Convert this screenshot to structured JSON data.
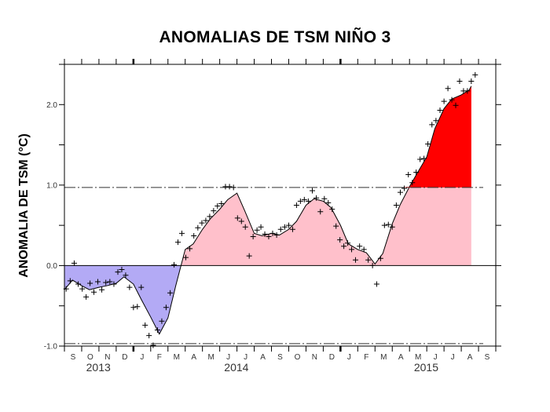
{
  "chart_data": {
    "type": "area",
    "title": "ANOMALIAS  DE TSM NIÑO 3",
    "ylabel": "ANOMALIA DE TSM (°C)",
    "xlabel": "",
    "xlim": [
      "2013-09-01",
      "2015-10-01"
    ],
    "ylim": [
      -1.0,
      2.5
    ],
    "yticks": [
      -1.0,
      -0.5,
      0.0,
      0.5,
      1.0,
      1.5,
      2.0,
      2.5
    ],
    "ytick_labels": [
      "-1.0",
      "0.0",
      "1.0",
      "2.0"
    ],
    "ytick_label_values": [
      -1.0,
      0.0,
      1.0,
      2.0
    ],
    "month_labels": [
      "S",
      "O",
      "N",
      "D",
      "J",
      "F",
      "M",
      "A",
      "M",
      "J",
      "J",
      "A",
      "S",
      "O",
      "N",
      "D",
      "J",
      "F",
      "M",
      "A",
      "M",
      "J",
      "J",
      "A",
      "S"
    ],
    "year_labels": [
      {
        "label": "2013",
        "month": "2013-10-31"
      },
      {
        "label": "2014",
        "month": "2014-06-30"
      },
      {
        "label": "2015",
        "month": "2015-05-31"
      }
    ],
    "thresholds": [
      0.97,
      -0.97
    ],
    "colors": {
      "negative": "#b3aaf5",
      "positive": "#ffc0cb",
      "above_threshold": "#ff0000",
      "line": "#000000"
    },
    "grid": false,
    "smoothed_curve": [
      [
        "2013-09-01",
        -0.3
      ],
      [
        "2013-09-15",
        -0.18
      ],
      [
        "2013-10-01",
        -0.25
      ],
      [
        "2013-10-15",
        -0.3
      ],
      [
        "2013-11-01",
        -0.27
      ],
      [
        "2013-11-15",
        -0.25
      ],
      [
        "2013-12-01",
        -0.22
      ],
      [
        "2013-12-15",
        -0.14
      ],
      [
        "2014-01-01",
        -0.23
      ],
      [
        "2014-01-15",
        -0.42
      ],
      [
        "2014-02-01",
        -0.64
      ],
      [
        "2014-02-15",
        -0.85
      ],
      [
        "2014-03-01",
        -0.65
      ],
      [
        "2014-03-15",
        -0.25
      ],
      [
        "2014-04-01",
        0.2
      ],
      [
        "2014-04-15",
        0.27
      ],
      [
        "2014-05-01",
        0.45
      ],
      [
        "2014-05-15",
        0.58
      ],
      [
        "2014-06-01",
        0.7
      ],
      [
        "2014-06-15",
        0.82
      ],
      [
        "2014-07-01",
        0.9
      ],
      [
        "2014-07-15",
        0.68
      ],
      [
        "2014-08-01",
        0.4
      ],
      [
        "2014-08-15",
        0.37
      ],
      [
        "2014-09-01",
        0.4
      ],
      [
        "2014-09-15",
        0.38
      ],
      [
        "2014-10-01",
        0.45
      ],
      [
        "2014-10-15",
        0.55
      ],
      [
        "2014-11-01",
        0.75
      ],
      [
        "2014-11-15",
        0.83
      ],
      [
        "2014-12-01",
        0.8
      ],
      [
        "2014-12-15",
        0.72
      ],
      [
        "2015-01-01",
        0.5
      ],
      [
        "2015-01-15",
        0.27
      ],
      [
        "2015-02-01",
        0.2
      ],
      [
        "2015-02-15",
        0.16
      ],
      [
        "2015-03-01",
        0.02
      ],
      [
        "2015-03-15",
        0.15
      ],
      [
        "2015-04-01",
        0.52
      ],
      [
        "2015-04-15",
        0.76
      ],
      [
        "2015-05-01",
        0.98
      ],
      [
        "2015-05-15",
        1.15
      ],
      [
        "2015-06-01",
        1.35
      ],
      [
        "2015-06-15",
        1.7
      ],
      [
        "2015-07-01",
        1.95
      ],
      [
        "2015-07-15",
        2.07
      ],
      [
        "2015-08-01",
        2.12
      ],
      [
        "2015-08-15",
        2.18
      ],
      [
        "2015-08-19",
        2.23
      ]
    ],
    "weekly_points": [
      [
        "2013-09-04",
        -0.29
      ],
      [
        "2013-09-11",
        -0.19
      ],
      [
        "2013-09-18",
        0.03
      ],
      [
        "2013-09-25",
        -0.23
      ],
      [
        "2013-10-02",
        -0.29
      ],
      [
        "2013-10-09",
        -0.39
      ],
      [
        "2013-10-16",
        -0.22
      ],
      [
        "2013-10-23",
        -0.33
      ],
      [
        "2013-10-30",
        -0.2
      ],
      [
        "2013-11-06",
        -0.3
      ],
      [
        "2013-11-13",
        -0.21
      ],
      [
        "2013-11-20",
        -0.2
      ],
      [
        "2013-11-27",
        -0.23
      ],
      [
        "2013-12-04",
        -0.08
      ],
      [
        "2013-12-11",
        -0.05
      ],
      [
        "2013-12-18",
        -0.12
      ],
      [
        "2013-12-25",
        -0.27
      ],
      [
        "2014-01-01",
        -0.52
      ],
      [
        "2014-01-08",
        -0.51
      ],
      [
        "2014-01-15",
        -0.27
      ],
      [
        "2014-01-22",
        -0.74
      ],
      [
        "2014-01-29",
        -0.87
      ],
      [
        "2014-02-05",
        -0.99
      ],
      [
        "2014-02-12",
        -0.8
      ],
      [
        "2014-02-19",
        -0.69
      ],
      [
        "2014-02-26",
        -0.52
      ],
      [
        "2014-03-05",
        -0.34
      ],
      [
        "2014-03-12",
        0.01
      ],
      [
        "2014-03-19",
        0.29
      ],
      [
        "2014-03-26",
        0.4
      ],
      [
        "2014-04-02",
        0.1
      ],
      [
        "2014-04-09",
        0.21
      ],
      [
        "2014-04-16",
        0.37
      ],
      [
        "2014-04-23",
        0.47
      ],
      [
        "2014-04-30",
        0.53
      ],
      [
        "2014-05-07",
        0.56
      ],
      [
        "2014-05-14",
        0.61
      ],
      [
        "2014-05-21",
        0.68
      ],
      [
        "2014-05-28",
        0.74
      ],
      [
        "2014-06-04",
        0.77
      ],
      [
        "2014-06-11",
        0.98
      ],
      [
        "2014-06-18",
        0.98
      ],
      [
        "2014-06-25",
        0.97
      ],
      [
        "2014-07-02",
        0.59
      ],
      [
        "2014-07-09",
        0.55
      ],
      [
        "2014-07-16",
        0.48
      ],
      [
        "2014-07-23",
        0.12
      ],
      [
        "2014-07-30",
        0.36
      ],
      [
        "2014-08-06",
        0.44
      ],
      [
        "2014-08-13",
        0.48
      ],
      [
        "2014-08-20",
        0.39
      ],
      [
        "2014-08-27",
        0.36
      ],
      [
        "2014-09-03",
        0.4
      ],
      [
        "2014-09-10",
        0.38
      ],
      [
        "2014-09-17",
        0.45
      ],
      [
        "2014-09-24",
        0.48
      ],
      [
        "2014-10-01",
        0.5
      ],
      [
        "2014-10-08",
        0.45
      ],
      [
        "2014-10-15",
        0.75
      ],
      [
        "2014-10-22",
        0.8
      ],
      [
        "2014-10-29",
        0.82
      ],
      [
        "2014-11-05",
        0.8
      ],
      [
        "2014-11-12",
        0.93
      ],
      [
        "2014-11-19",
        0.84
      ],
      [
        "2014-11-26",
        0.67
      ],
      [
        "2014-12-03",
        0.83
      ],
      [
        "2014-12-10",
        0.78
      ],
      [
        "2014-12-17",
        0.7
      ],
      [
        "2014-12-24",
        0.49
      ],
      [
        "2014-12-31",
        0.32
      ],
      [
        "2015-01-07",
        0.24
      ],
      [
        "2015-01-14",
        0.28
      ],
      [
        "2015-01-21",
        0.2
      ],
      [
        "2015-01-28",
        0.07
      ],
      [
        "2015-02-04",
        0.24
      ],
      [
        "2015-02-11",
        0.2
      ],
      [
        "2015-02-18",
        0.07
      ],
      [
        "2015-02-25",
        0.0
      ],
      [
        "2015-03-04",
        -0.23
      ],
      [
        "2015-03-11",
        0.09
      ],
      [
        "2015-03-18",
        0.5
      ],
      [
        "2015-03-25",
        0.51
      ],
      [
        "2015-04-01",
        0.48
      ],
      [
        "2015-04-08",
        0.75
      ],
      [
        "2015-04-15",
        0.91
      ],
      [
        "2015-04-22",
        0.96
      ],
      [
        "2015-04-29",
        1.13
      ],
      [
        "2015-05-06",
        1.03
      ],
      [
        "2015-05-13",
        1.16
      ],
      [
        "2015-05-20",
        1.32
      ],
      [
        "2015-05-27",
        1.33
      ],
      [
        "2015-06-03",
        1.51
      ],
      [
        "2015-06-10",
        1.75
      ],
      [
        "2015-06-17",
        1.8
      ],
      [
        "2015-06-24",
        1.93
      ],
      [
        "2015-07-01",
        2.04
      ],
      [
        "2015-07-08",
        2.2
      ],
      [
        "2015-07-15",
        2.06
      ],
      [
        "2015-07-22",
        1.99
      ],
      [
        "2015-07-29",
        2.29
      ],
      [
        "2015-08-05",
        2.17
      ],
      [
        "2015-08-12",
        2.17
      ],
      [
        "2015-08-19",
        2.29
      ],
      [
        "2015-08-26",
        2.37
      ]
    ]
  }
}
